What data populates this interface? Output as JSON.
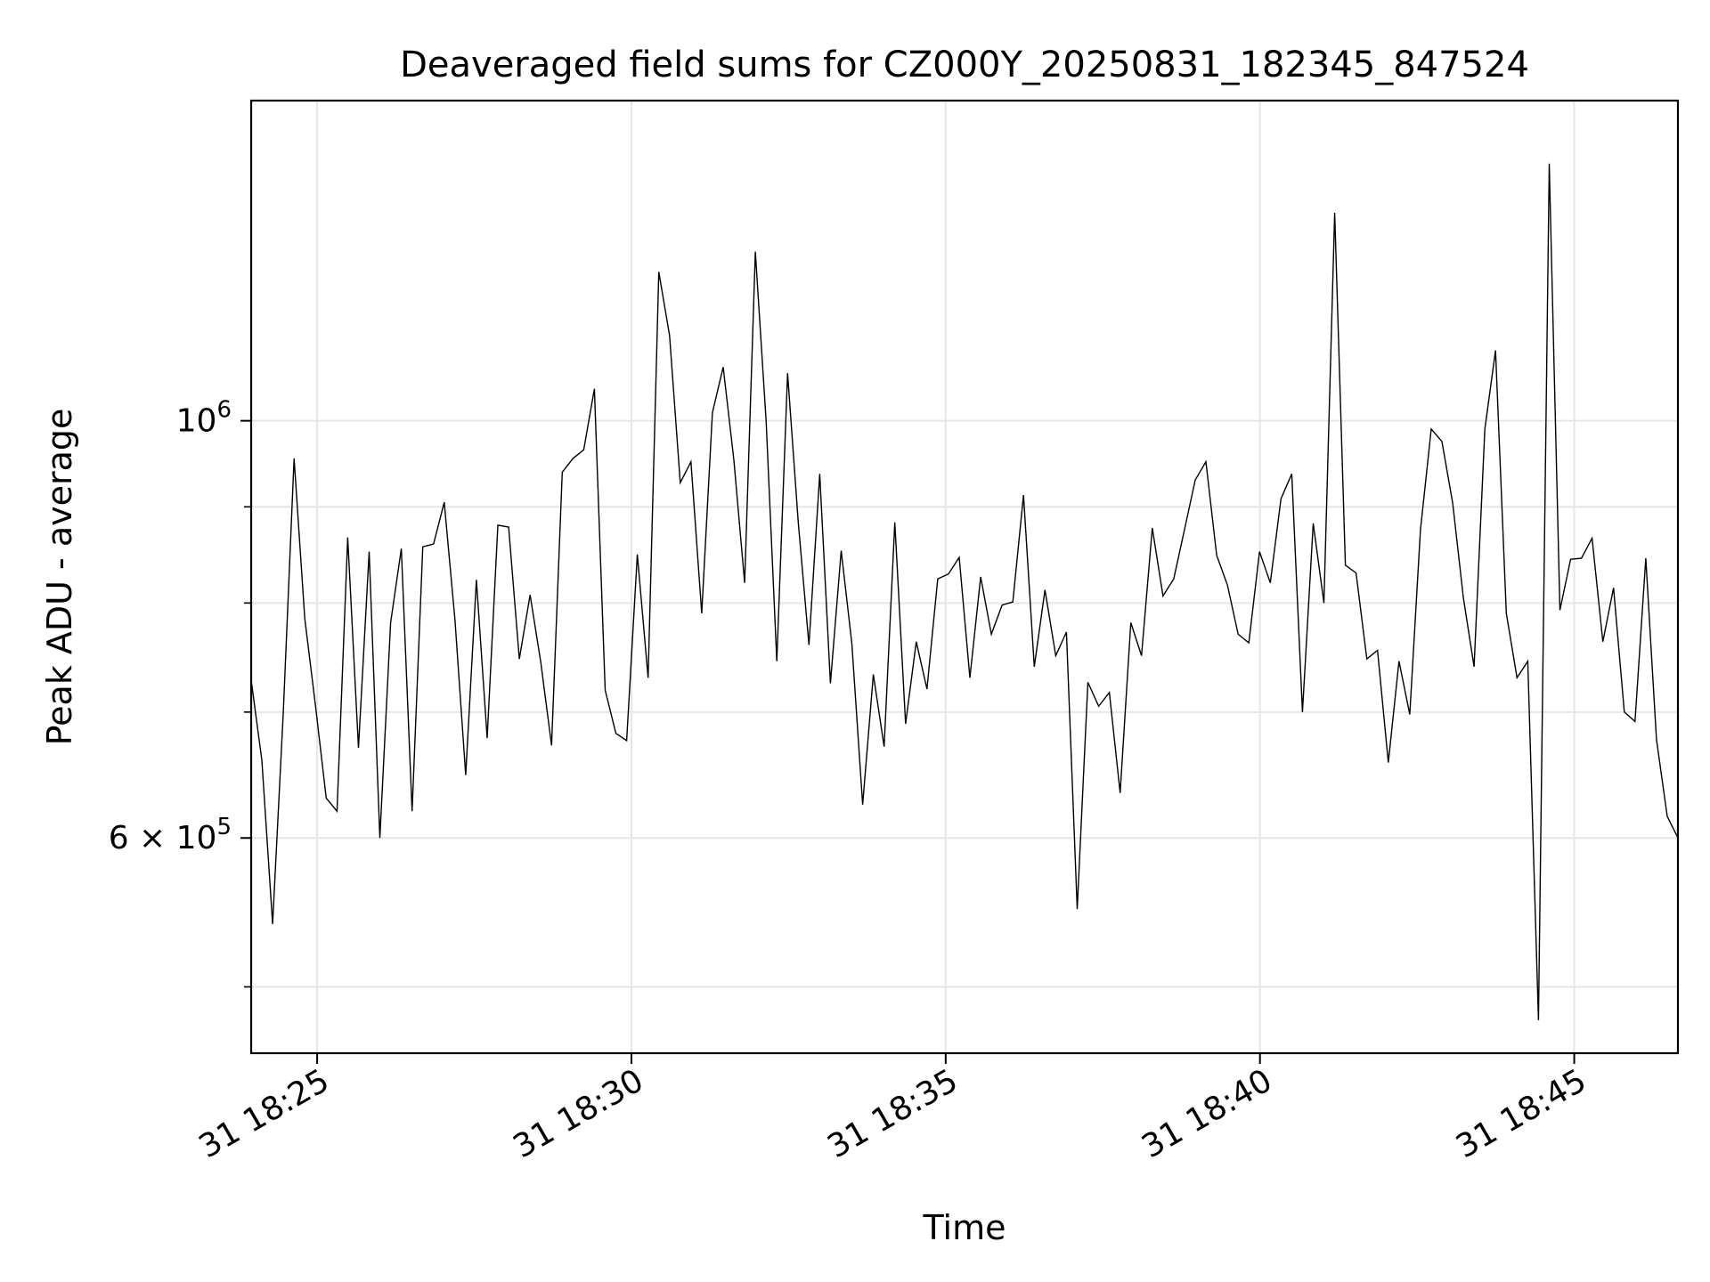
{
  "chart_data": {
    "type": "line",
    "title": "Deaveraged field sums for CZ000Y_20250831_182345_847524",
    "xlabel": "Time",
    "ylabel": "Peak ADU - average",
    "x_start": "2025-08-31 18:23:57",
    "x_end": "2025-08-31 18:46:39",
    "xlim": [
      "2025-08-31 18:23:57",
      "2025-08-31 18:46:39"
    ],
    "ylim": [
      461000,
      1480000
    ],
    "yscale": "log",
    "x_tick_labels": [
      "31 18:25",
      "31 18:30",
      "31 18:35",
      "31 18:40",
      "31 18:45"
    ],
    "y_major_ticks": [
      {
        "value": 600000,
        "label_base": "6 × 10",
        "label_exp": "5"
      },
      {
        "value": 1000000,
        "label_base": "10",
        "label_exp": "6"
      }
    ],
    "y_minor_ticks": [
      500000,
      700000,
      800000,
      900000
    ],
    "grid": true,
    "line_color": "#000000",
    "grid_color": "#e6e6e6",
    "series": [
      {
        "values": [
          728000,
          660000,
          540000,
          700000,
          955000,
          785000,
          705000,
          630000,
          620000,
          867000,
          670000,
          852000,
          600000,
          781000,
          855000,
          620000,
          857000,
          860000,
          905000,
          783000,
          648000,
          823000,
          678000,
          880000,
          878000,
          747000,
          808000,
          744000,
          672000,
          939000,
          955000,
          965000,
          1040000,
          719000,
          682000,
          676000,
          849000,
          730000,
          1200000,
          1110000,
          927000,
          951000,
          790000,
          1010000,
          1068000,
          953000,
          820000,
          1230000,
          1000000,
          745000,
          1060000,
          883000,
          760000,
          937000,
          725000,
          853000,
          761000,
          625000,
          733000,
          671000,
          883000,
          690000,
          763000,
          720000,
          824000,
          829000,
          846000,
          730000,
          826000,
          770000,
          798000,
          801000,
          913000,
          740000,
          813000,
          750000,
          772000,
          550000,
          726000,
          705000,
          717000,
          634000,
          781000,
          750000,
          877000,
          807000,
          824000,
          875000,
          930000,
          951000,
          848000,
          818000,
          770000,
          762000,
          852000,
          820000,
          909000,
          937000,
          700000,
          882000,
          800000,
          1290000,
          838000,
          830000,
          747000,
          755000,
          658000,
          745000,
          698000,
          875000,
          990000,
          975000,
          904000,
          805000,
          740000,
          990000,
          1090000,
          790000,
          730000,
          745000,
          480000,
          1370000,
          793000,
          844000,
          845000,
          866000,
          763000,
          815000,
          700000,
          692000,
          845000,
          677000,
          616000,
          600000
        ]
      }
    ]
  }
}
